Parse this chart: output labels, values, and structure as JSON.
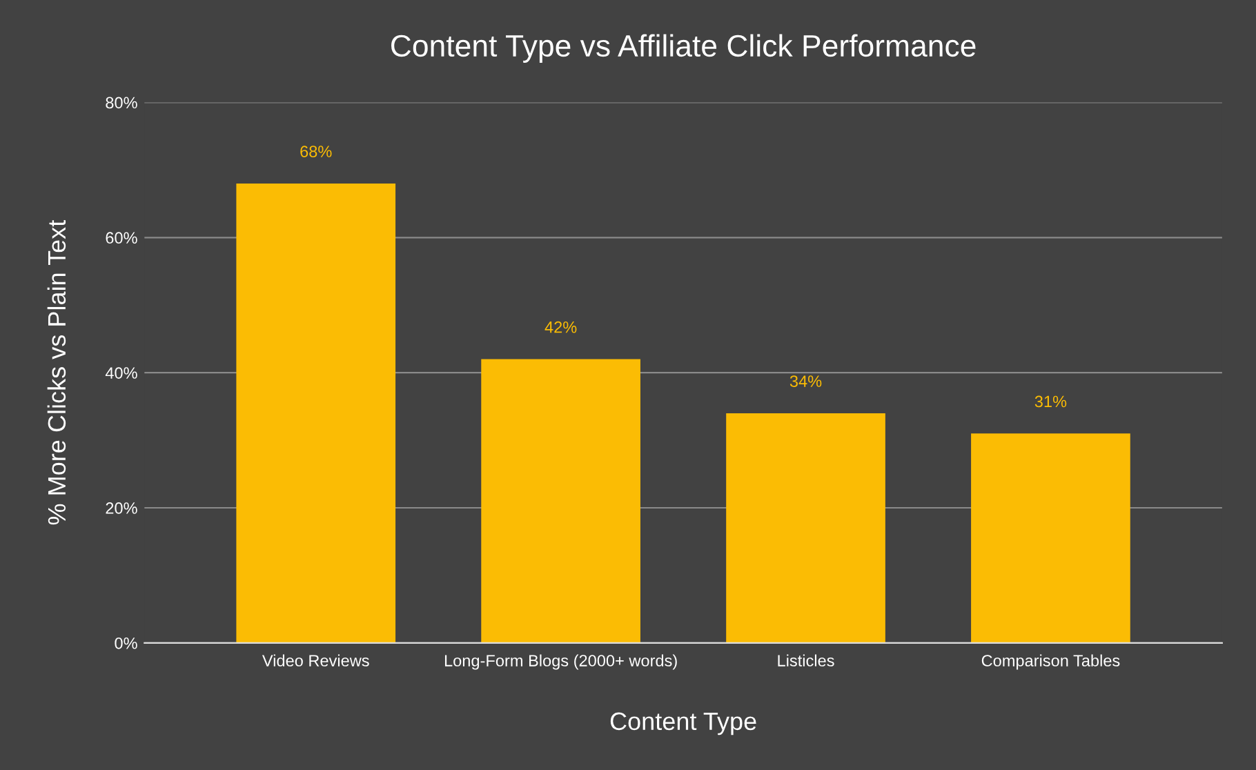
{
  "chart_data": {
    "type": "bar",
    "title": "Content Type vs Affiliate Click Performance",
    "xlabel": "Content Type",
    "ylabel": "% More Clicks vs Plain Text",
    "categories": [
      "Video Reviews",
      "Long-Form Blogs (2000+ words)",
      "Listicles",
      "Comparison Tables"
    ],
    "values": [
      68,
      42,
      34,
      31
    ],
    "value_labels": [
      "68%",
      "42%",
      "34%",
      "31%"
    ],
    "color": "#fbbc04",
    "ylim": [
      0,
      80
    ],
    "yticks": [
      {
        "value": 0,
        "label": "0%"
      },
      {
        "value": 20,
        "label": "20%"
      },
      {
        "value": 40,
        "label": "40%"
      },
      {
        "value": 60,
        "label": "60%"
      },
      {
        "value": 80,
        "label": "80%"
      }
    ],
    "grid": "y",
    "legend": false
  }
}
